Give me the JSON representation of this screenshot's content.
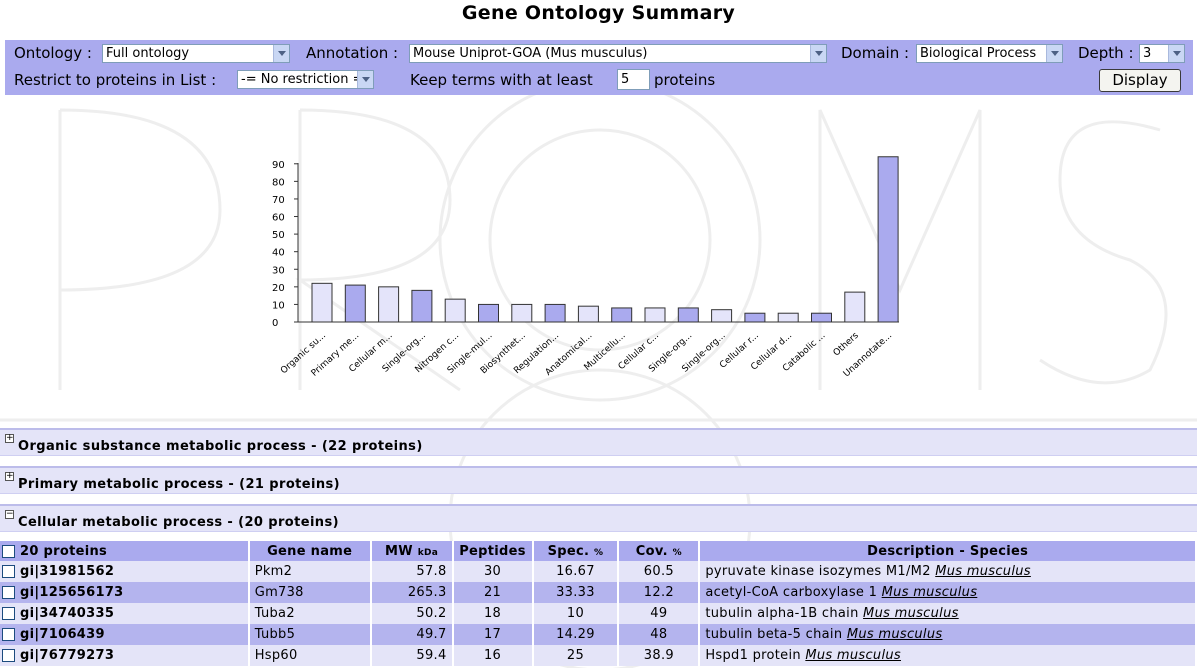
{
  "title": "Gene Ontology Summary",
  "controls": {
    "ontology_label": "Ontology :",
    "ontology_value": "Full ontology",
    "annotation_label": "Annotation :",
    "annotation_value": "Mouse Uniprot-GOA (Mus musculus)",
    "domain_label": "Domain :",
    "domain_value": "Biological Process",
    "depth_label": "Depth :",
    "depth_value": "3",
    "restrict_label": "Restrict to proteins in List :",
    "restrict_value": "-= No restriction =-",
    "keep_label": "Keep terms with at least",
    "keep_value": "5",
    "keep_suffix": "proteins",
    "display_label": "Display"
  },
  "chart_data": {
    "type": "bar",
    "categories": [
      "Organic su...",
      "Primary me...",
      "Cellular m...",
      "Single-org...",
      "Nitrogen c...",
      "Single-mul...",
      "Biosynthet...",
      "Regulation...",
      "Anatomical...",
      "Multicellu...",
      "Cellular c...",
      "Single-org...",
      "Single-org...",
      "Cellular r...",
      "Cellular d...",
      "Catabolic ...",
      "Others",
      "Unannotate..."
    ],
    "values": [
      22,
      21,
      20,
      18,
      13,
      10,
      10,
      10,
      9,
      8,
      8,
      8,
      7,
      5,
      5,
      5,
      17,
      94
    ],
    "yticks": [
      0,
      10,
      20,
      30,
      40,
      50,
      60,
      70,
      80,
      90
    ],
    "ylim": [
      0,
      95
    ],
    "colors": [
      "#e4e4fa",
      "#aaaaee"
    ]
  },
  "sections": [
    {
      "toggle": "+",
      "title": "Organic substance metabolic process - (22 proteins)"
    },
    {
      "toggle": "+",
      "title": "Primary metabolic process - (21 proteins)"
    },
    {
      "toggle": "−",
      "title": "Cellular metabolic process - (20 proteins)"
    }
  ],
  "table": {
    "headers": {
      "count": "20 proteins",
      "gene": "Gene name",
      "mw": "MW",
      "mw_unit": "kDa",
      "peptides": "Peptides",
      "spec": "Spec.",
      "spec_unit": "%",
      "cov": "Cov.",
      "cov_unit": "%",
      "desc": "Description - Species"
    },
    "rows": [
      {
        "id": "gi|31981562",
        "gene": "Pkm2",
        "mw": "57.8",
        "peptides": "30",
        "spec": "16.67",
        "cov": "60.5",
        "desc": "pyruvate kinase isozymes M1/M2",
        "species": "Mus musculus"
      },
      {
        "id": "gi|125656173",
        "gene": "Gm738",
        "mw": "265.3",
        "peptides": "21",
        "spec": "33.33",
        "cov": "12.2",
        "desc": "acetyl-CoA carboxylase 1",
        "species": "Mus musculus"
      },
      {
        "id": "gi|34740335",
        "gene": "Tuba2",
        "mw": "50.2",
        "peptides": "18",
        "spec": "10",
        "cov": "49",
        "desc": "tubulin alpha-1B chain",
        "species": "Mus musculus"
      },
      {
        "id": "gi|7106439",
        "gene": "Tubb5",
        "mw": "49.7",
        "peptides": "17",
        "spec": "14.29",
        "cov": "48",
        "desc": "tubulin beta-5 chain",
        "species": "Mus musculus"
      },
      {
        "id": "gi|76779273",
        "gene": "Hsp60",
        "mw": "59.4",
        "peptides": "16",
        "spec": "25",
        "cov": "38.9",
        "desc": "Hspd1 protein",
        "species": "Mus musculus"
      }
    ]
  }
}
